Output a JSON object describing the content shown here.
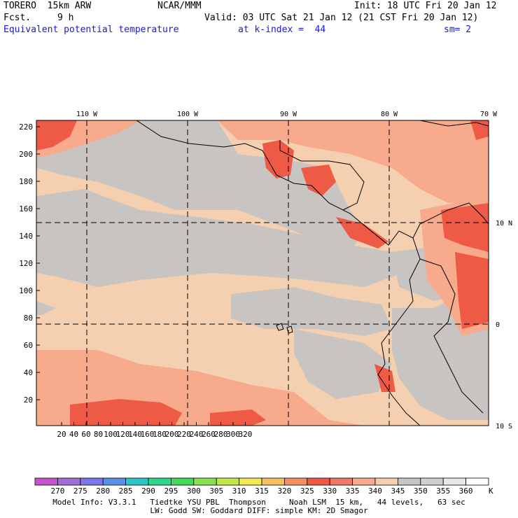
{
  "header": {
    "model": "TORERO  15km ARW",
    "org": "NCAR/MMM",
    "init": "Init: 18 UTC Fri 20 Jan 12",
    "fcst_label": "Fcst.",
    "fcst_value": "9 h",
    "valid": "Valid: 03 UTC Sat 21 Jan 12 (21 CST Fri 20 Jan 12)",
    "field": "Equivalent potential temperature",
    "level": "at k-index =  44",
    "smooth": "sm= 2"
  },
  "map": {
    "lon_labels": [
      "110 W",
      "100 W",
      "90 W",
      "80 W",
      "70 W"
    ],
    "lat_labels": [
      "10 N",
      "0",
      "10 S"
    ],
    "x_ticks": [
      "20",
      "40",
      "60",
      "80",
      "100",
      "120",
      "140",
      "160",
      "180",
      "200",
      "220",
      "240",
      "260",
      "280",
      "300",
      "320"
    ],
    "y_ticks": [
      "220",
      "200",
      "180",
      "160",
      "140",
      "120",
      "100",
      "80",
      "60",
      "40",
      "20"
    ]
  },
  "legend": {
    "values": [
      "270",
      "275",
      "280",
      "285",
      "290",
      "295",
      "300",
      "305",
      "310",
      "315",
      "320",
      "325",
      "330",
      "335",
      "340",
      "345",
      "350",
      "355",
      "360"
    ],
    "unit": "K",
    "colors": [
      "#c455c8",
      "#a070d8",
      "#7b78e8",
      "#5a90e6",
      "#2ec4c4",
      "#2ed68c",
      "#42d85a",
      "#8ae050",
      "#c4e84a",
      "#f0e85a",
      "#f6c060",
      "#f29060",
      "#ee5a46",
      "#f07868",
      "#f8aa8c",
      "#f4cfb0",
      "#c8c4c2",
      "#d0d0d0",
      "#e8e8e8",
      "#ffffff"
    ]
  },
  "colors": {
    "ocean_warm": "#f4cfb0",
    "cool_gray": "#c8c4c2",
    "hot_red": "#ee5a46",
    "salmon": "#f8aa8c",
    "header_blue": "#1a1ad0"
  },
  "footer": {
    "line1": "Model Info: V3.3.1   Tiedtke YSU PBL  Thompson     Noah LSM  15 km,   44 levels,   63 sec",
    "line2": "LW: Godd SW: Goddard DIFF: simple KM: 2D Smagor"
  }
}
